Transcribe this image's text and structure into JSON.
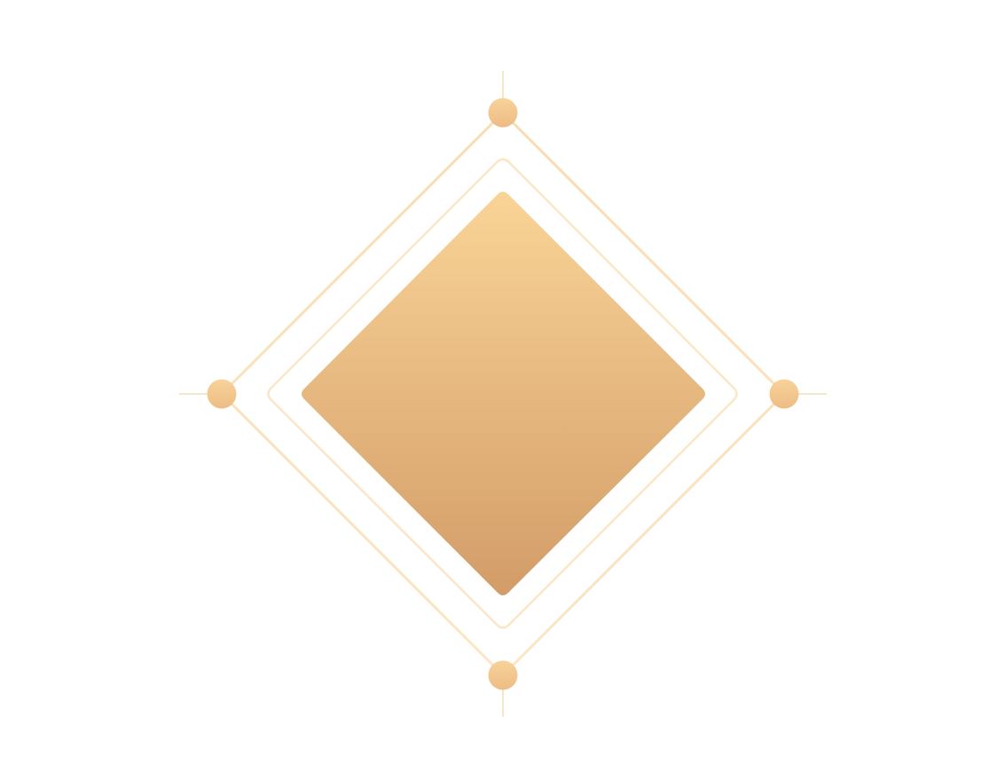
{
  "graphic": {
    "icon": "diamond-emblem-icon",
    "colors": {
      "background": "#ffffff",
      "core_top": "#F9D497",
      "core_bottom": "#D39C68",
      "outer_frame": "#F7DDB0",
      "inner_frame": "#FBE6C6",
      "node_top": "#F7D39A",
      "node_bottom": "#EDBC84",
      "tick_line": "#F0CC95"
    }
  }
}
